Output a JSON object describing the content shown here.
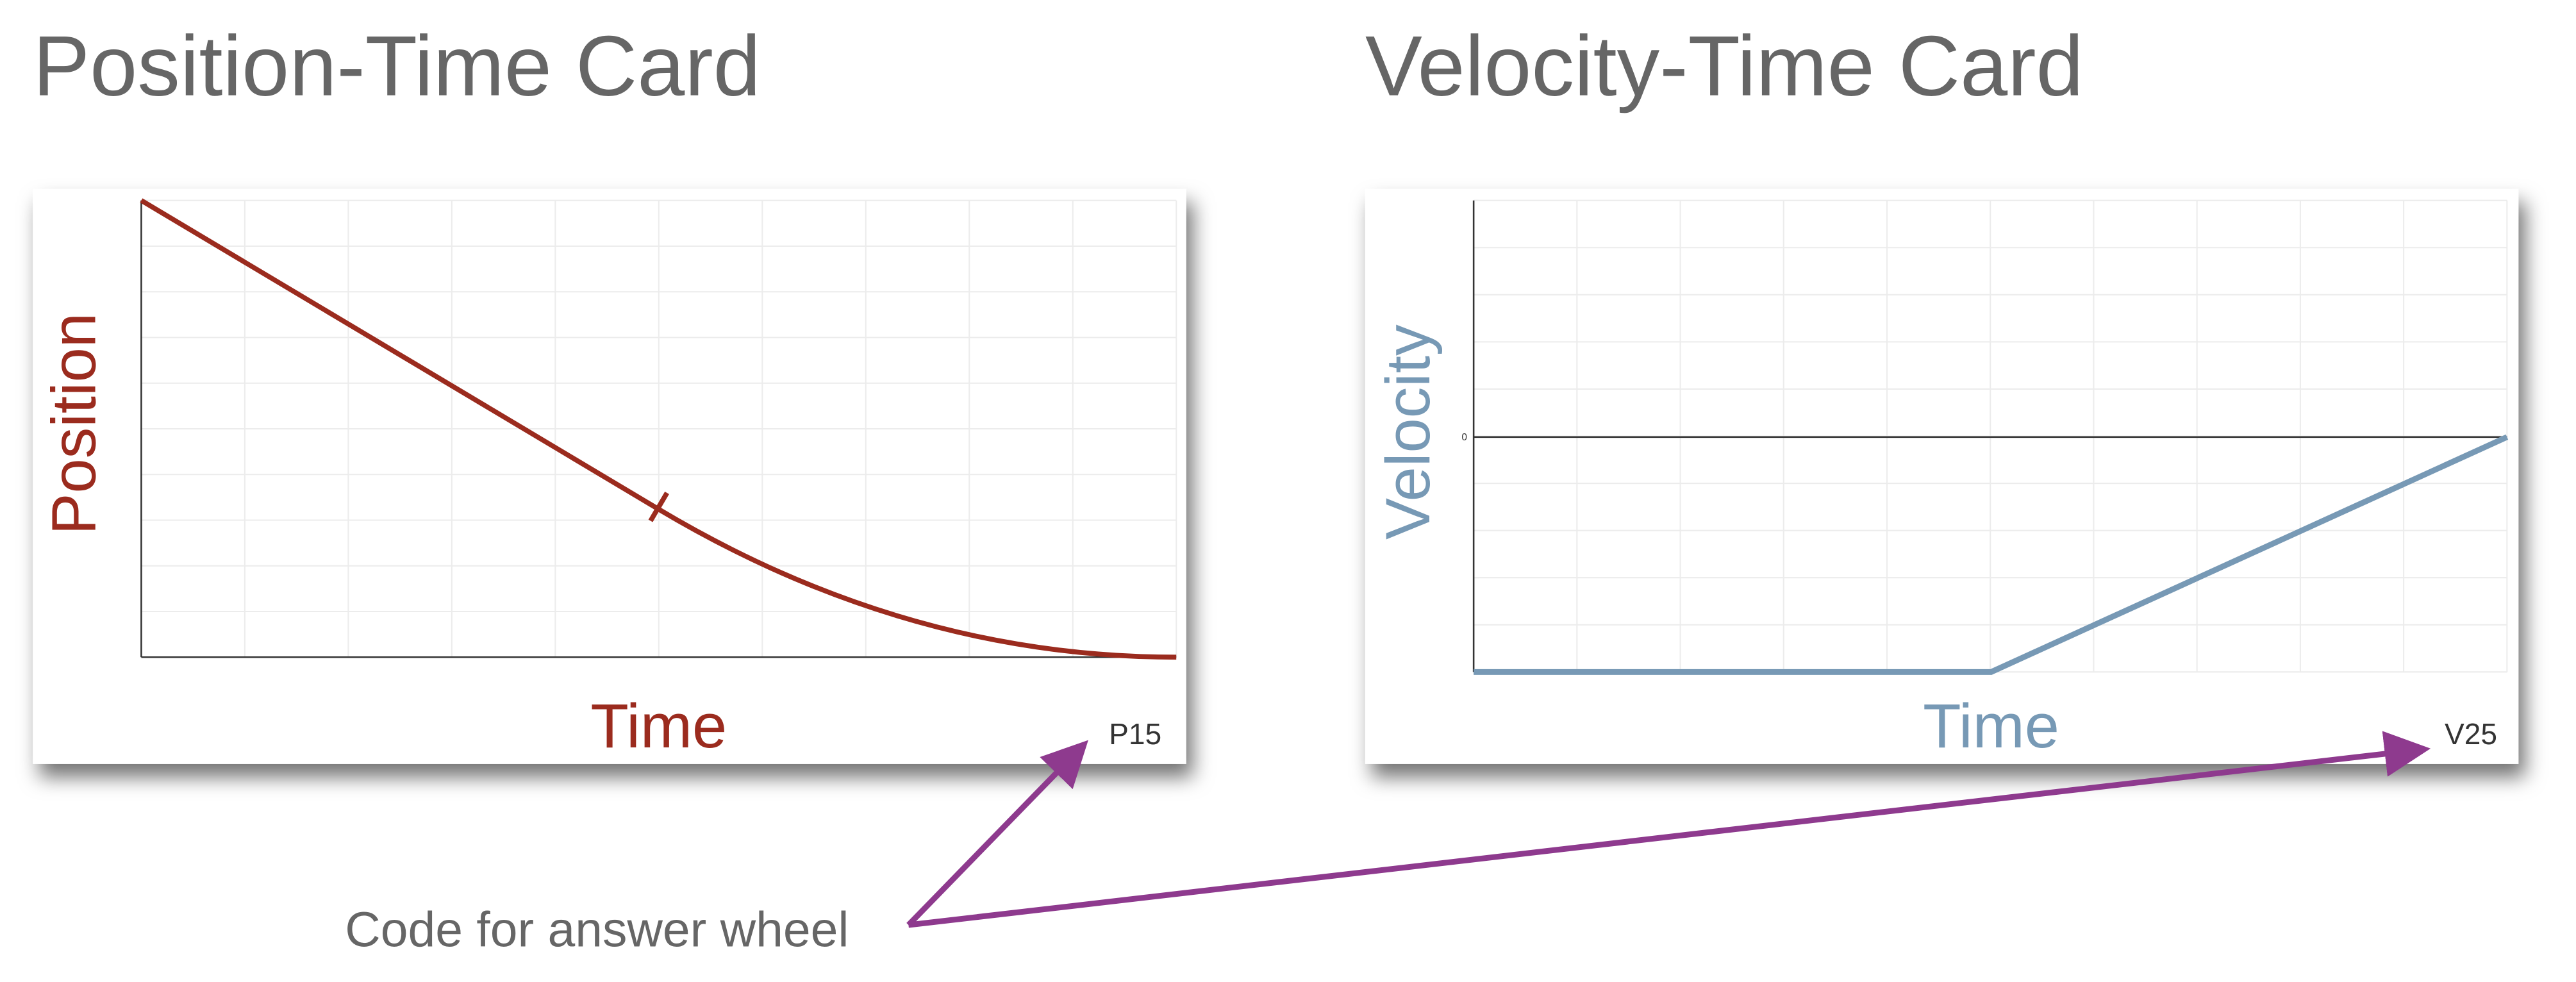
{
  "position_card": {
    "title": "Position-Time Card",
    "y_label": "Position",
    "x_label": "Time",
    "code": "P15"
  },
  "velocity_card": {
    "title": "Velocity-Time Card",
    "y_label": "Velocity",
    "x_label": "Time",
    "code": "V25",
    "zero_label": "0"
  },
  "annotation": "Code for answer wheel"
}
